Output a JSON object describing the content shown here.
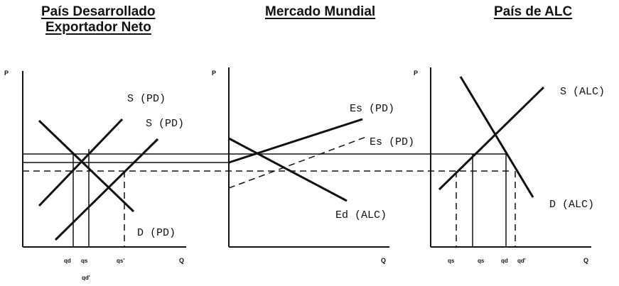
{
  "titles": {
    "left_line1": "País Desarrollado",
    "left_line2": "Exportador Neto",
    "middle": "Mercado Mundial",
    "right": "País de ALC"
  },
  "axes": {
    "p": "P",
    "q": "Q"
  },
  "left_panel": {
    "supply_1": "S (PD)",
    "supply_2": "S (PD)",
    "demand": "D (PD)",
    "ticks": [
      "qd",
      "qs",
      "qs'",
      "qd'"
    ]
  },
  "middle_panel": {
    "export_supply_1": "Es (PD)",
    "export_supply_2": "Es (PD)",
    "export_demand": "Ed (ALC)"
  },
  "right_panel": {
    "supply": "S (ALC)",
    "demand": "D (ALC)",
    "ticks": [
      "qs",
      "qs",
      "qd",
      "qd'"
    ]
  }
}
